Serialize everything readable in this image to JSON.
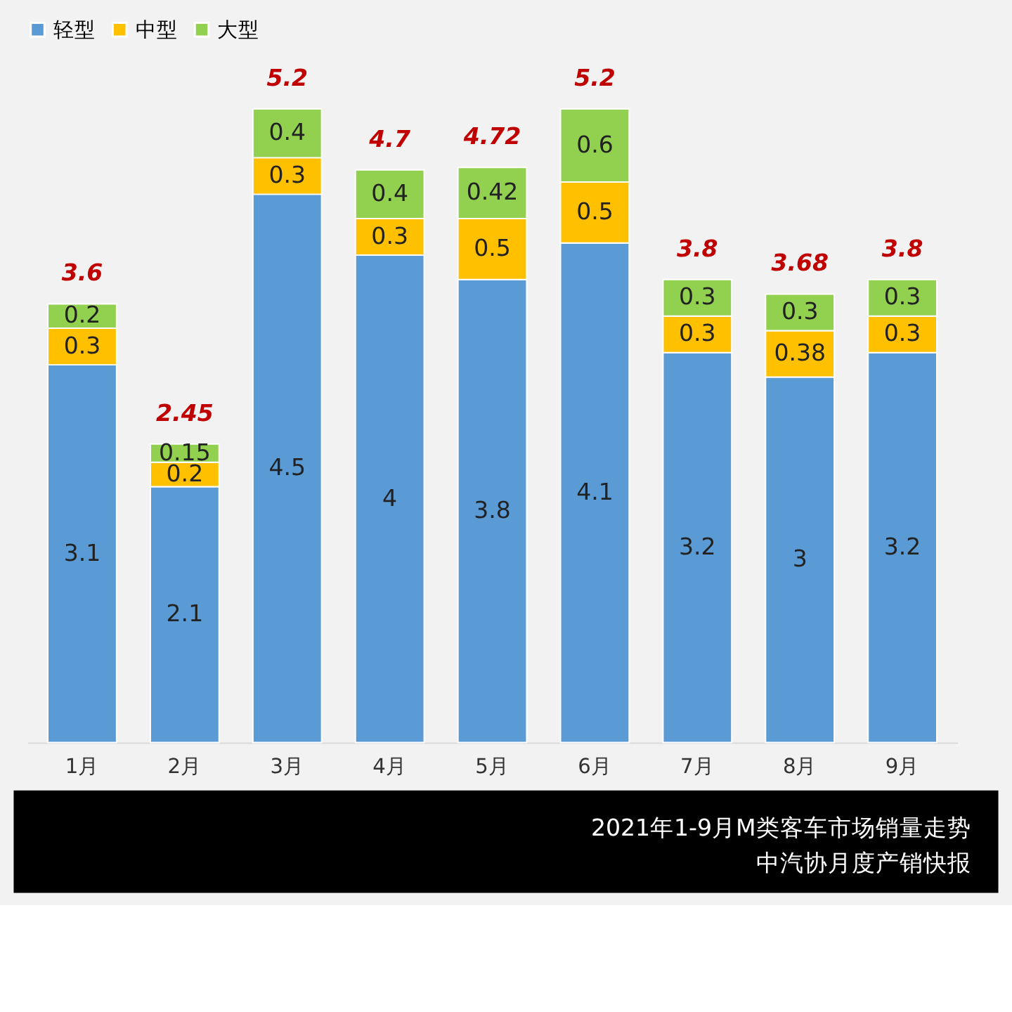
{
  "chart_data": {
    "type": "bar",
    "stacked": true,
    "categories": [
      "1月",
      "2月",
      "3月",
      "4月",
      "5月",
      "6月",
      "7月",
      "8月",
      "9月"
    ],
    "series": [
      {
        "name": "轻型",
        "color": "#5b9bd5",
        "values": [
          3.1,
          2.1,
          4.5,
          4,
          3.8,
          4.1,
          3.2,
          3,
          3.2
        ]
      },
      {
        "name": "中型",
        "color": "#ffc000",
        "values": [
          0.3,
          0.2,
          0.3,
          0.3,
          0.5,
          0.5,
          0.3,
          0.38,
          0.3
        ]
      },
      {
        "name": "大型",
        "color": "#92d050",
        "values": [
          0.2,
          0.15,
          0.4,
          0.4,
          0.42,
          0.6,
          0.3,
          0.3,
          0.3
        ]
      }
    ],
    "totals": [
      "3.6",
      "2.45",
      "5.2",
      "4.7",
      "4.72",
      "5.2",
      "3.8",
      "3.68",
      "3.8"
    ],
    "data_labels": true,
    "legend": "top",
    "grid": false,
    "tick_labels": "x",
    "annotations": [
      "2021年1-9月M类客车市场销量走势",
      "中汽协月度产销快报"
    ]
  }
}
